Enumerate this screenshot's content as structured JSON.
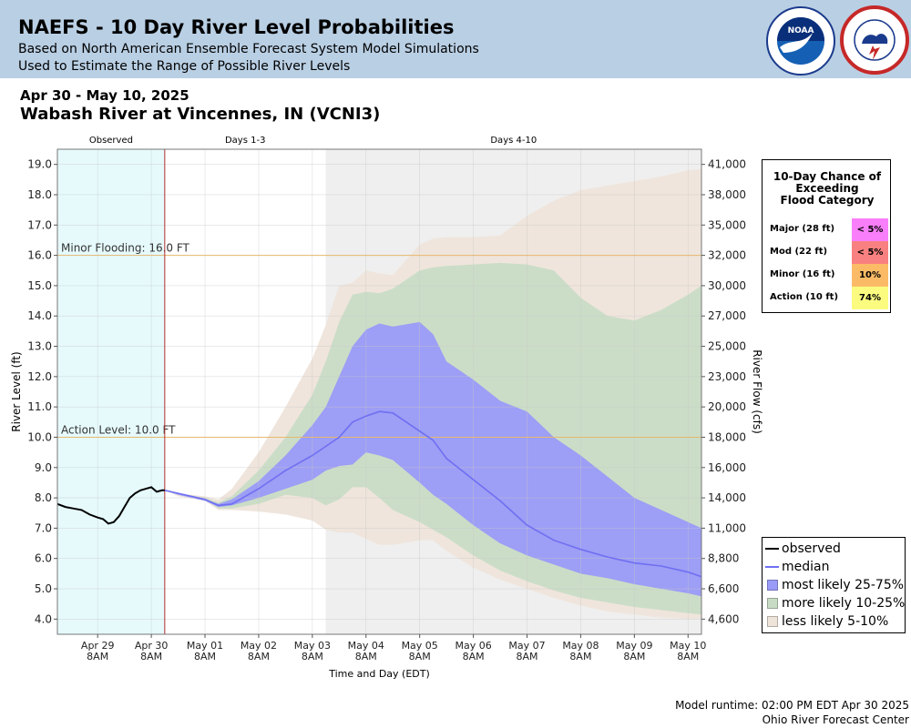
{
  "header": {
    "title": "NAEFS - 10 Day River Level Probabilities",
    "subtitle_1": "Based on North American Ensemble Forecast System Model Simulations",
    "subtitle_2": "Used to Estimate the Range of Possible River Levels"
  },
  "page": {
    "date_range": "Apr 30 - May 10, 2025",
    "station": "Wabash River at Vincennes, IN (VCNI3)"
  },
  "colors": {
    "header_bg": "#b9cfe4",
    "observed_region": "#e6fafc",
    "forecast_days_4_10": "#efefef",
    "less_likely": "#eee4da",
    "more_likely": "#c8dcc5",
    "most_likely": "#9a9af8",
    "median": "#6f6ff2",
    "observed_line": "#000000",
    "flood_line": "#e6b86e",
    "now_line": "#b03030",
    "major": "#f97ef9",
    "moderate": "#f98080",
    "minor": "#fbbb66",
    "action": "#fbfb80"
  },
  "probability_box": {
    "title_lines": [
      "10-Day Chance of",
      "Exceeding",
      "Flood Category"
    ],
    "rows": [
      {
        "label": "Major (28 ft)",
        "value": "< 5%",
        "color": "#f97ef9"
      },
      {
        "label": "Mod (22 ft)",
        "value": "< 5%",
        "color": "#f98080"
      },
      {
        "label": "Minor (16 ft)",
        "value": "10%",
        "color": "#fbbb66"
      },
      {
        "label": "Action (10 ft)",
        "value": "74%",
        "color": "#fbfb80"
      }
    ]
  },
  "legend": {
    "items": [
      {
        "label": "observed",
        "kind": "line",
        "color": "#000000"
      },
      {
        "label": "median",
        "kind": "line",
        "color": "#6f6ff2"
      },
      {
        "label": "most likely 25-75%",
        "kind": "box",
        "color": "#9a9af8"
      },
      {
        "label": "more likely 10-25%",
        "kind": "box",
        "color": "#c8dcc5"
      },
      {
        "label": "less likely 5-10%",
        "kind": "box",
        "color": "#eee4da"
      }
    ]
  },
  "footer": {
    "runtime": "Model runtime: 02:00 PM EDT Apr 30 2025",
    "center": "Ohio River Forecast Center"
  },
  "chart_data": {
    "type": "area",
    "xlabel": "Time and Day (EDT)",
    "ylabel": "River Level (ft)",
    "ylabel_right": "River Flow (cfs)",
    "ylim": [
      3.5,
      19.5
    ],
    "xlim": [
      -1.75,
      10.25
    ],
    "x_unit": "days from Apr 30 2025 00:00 EDT",
    "y_ticks": [
      4.0,
      5.0,
      6.0,
      7.0,
      8.0,
      9.0,
      10.0,
      11.0,
      12.0,
      13.0,
      14.0,
      15.0,
      16.0,
      17.0,
      18.0,
      19.0
    ],
    "right_ticks": [
      {
        "stage": 4.0,
        "label": "4,600"
      },
      {
        "stage": 5.0,
        "label": "6,600"
      },
      {
        "stage": 6.0,
        "label": "8,800"
      },
      {
        "stage": 7.0,
        "label": "11,000"
      },
      {
        "stage": 8.0,
        "label": "14,000"
      },
      {
        "stage": 9.0,
        "label": "16,000"
      },
      {
        "stage": 10.0,
        "label": "18,000"
      },
      {
        "stage": 11.0,
        "label": "20,000"
      },
      {
        "stage": 12.0,
        "label": "23,000"
      },
      {
        "stage": 13.0,
        "label": "25,000"
      },
      {
        "stage": 14.0,
        "label": "27,000"
      },
      {
        "stage": 15.0,
        "label": "30,000"
      },
      {
        "stage": 16.0,
        "label": "32,000"
      },
      {
        "stage": 17.0,
        "label": "35,000"
      },
      {
        "stage": 18.0,
        "label": "38,000"
      },
      {
        "stage": 19.0,
        "label": "41,000"
      }
    ],
    "x_ticks": [
      {
        "x": -1,
        "day": "Apr 29",
        "time": "8AM"
      },
      {
        "x": 0,
        "day": "Apr 30",
        "time": "8AM"
      },
      {
        "x": 1,
        "day": "May 01",
        "time": "8AM"
      },
      {
        "x": 2,
        "day": "May 02",
        "time": "8AM"
      },
      {
        "x": 3,
        "day": "May 03",
        "time": "8AM"
      },
      {
        "x": 4,
        "day": "May 04",
        "time": "8AM"
      },
      {
        "x": 5,
        "day": "May 05",
        "time": "8AM"
      },
      {
        "x": 6,
        "day": "May 06",
        "time": "8AM"
      },
      {
        "x": 7,
        "day": "May 07",
        "time": "8AM"
      },
      {
        "x": 8,
        "day": "May 08",
        "time": "8AM"
      },
      {
        "x": 9,
        "day": "May 09",
        "time": "8AM"
      },
      {
        "x": 10,
        "day": "May 10",
        "time": "8AM"
      }
    ],
    "periods": [
      {
        "label": "Observed",
        "start": -1.75,
        "end": 0.25
      },
      {
        "label": "Days 1-3",
        "start": 0.25,
        "end": 3.25
      },
      {
        "label": "Days 4-10",
        "start": 3.25,
        "end": 10.25
      }
    ],
    "now_x": 0.25,
    "flood_lines": [
      {
        "stage": 16.0,
        "label": "Minor Flooding: 16.0 FT"
      },
      {
        "stage": 10.0,
        "label": "Action Level: 10.0 FT"
      }
    ],
    "observed": {
      "x": [
        -1.75,
        -1.6,
        -1.45,
        -1.3,
        -1.15,
        -1.0,
        -0.9,
        -0.8,
        -0.7,
        -0.6,
        -0.5,
        -0.4,
        -0.3,
        -0.2,
        -0.1,
        0.0,
        0.1,
        0.2,
        0.25
      ],
      "y": [
        7.8,
        7.7,
        7.65,
        7.6,
        7.45,
        7.35,
        7.3,
        7.15,
        7.2,
        7.4,
        7.7,
        8.0,
        8.15,
        8.25,
        8.3,
        8.35,
        8.2,
        8.25,
        8.25
      ]
    },
    "forecast_x": [
      0.25,
      0.5,
      1.0,
      1.25,
      1.5,
      2.0,
      2.5,
      3.0,
      3.25,
      3.5,
      3.75,
      4.0,
      4.25,
      4.5,
      5.0,
      5.25,
      5.5,
      6.0,
      6.5,
      7.0,
      7.5,
      8.0,
      8.5,
      9.0,
      9.5,
      10.0,
      10.25
    ],
    "median": [
      8.25,
      8.15,
      7.95,
      7.75,
      7.8,
      8.3,
      8.9,
      9.4,
      9.7,
      10.0,
      10.5,
      10.7,
      10.85,
      10.8,
      10.2,
      9.9,
      9.3,
      8.6,
      7.9,
      7.1,
      6.6,
      6.3,
      6.05,
      5.85,
      5.75,
      5.55,
      5.4
    ],
    "bands": [
      {
        "name": "less likely 5-10%",
        "upper": [
          8.25,
          8.15,
          8.05,
          7.95,
          8.3,
          9.5,
          11.0,
          12.6,
          13.7,
          15.0,
          15.1,
          15.5,
          15.4,
          15.35,
          16.35,
          16.55,
          16.6,
          16.6,
          16.65,
          17.3,
          17.8,
          18.15,
          18.3,
          18.45,
          18.6,
          18.8,
          18.85
        ],
        "lower": [
          8.25,
          8.05,
          7.9,
          7.6,
          7.6,
          7.55,
          7.45,
          7.25,
          6.95,
          6.85,
          6.85,
          6.65,
          6.45,
          6.45,
          6.6,
          6.6,
          6.25,
          5.7,
          5.3,
          5.0,
          4.7,
          4.45,
          4.25,
          4.15,
          4.05,
          4.0,
          4.0
        ]
      },
      {
        "name": "more likely 10-25%",
        "upper": [
          8.25,
          8.15,
          8.0,
          7.85,
          8.05,
          8.9,
          10.0,
          11.4,
          12.5,
          13.8,
          14.7,
          14.8,
          14.75,
          14.9,
          15.5,
          15.6,
          15.65,
          15.7,
          15.75,
          15.7,
          15.5,
          14.6,
          14.0,
          13.85,
          14.2,
          14.7,
          15.0
        ],
        "lower": [
          8.25,
          8.1,
          7.95,
          7.65,
          7.65,
          7.8,
          8.1,
          8.0,
          7.75,
          7.95,
          8.35,
          8.35,
          8.0,
          7.6,
          7.2,
          6.95,
          6.7,
          6.1,
          5.6,
          5.25,
          4.95,
          4.7,
          4.55,
          4.4,
          4.3,
          4.2,
          4.15
        ]
      },
      {
        "name": "most likely 25-75%",
        "upper": [
          8.25,
          8.15,
          7.95,
          7.8,
          7.95,
          8.55,
          9.4,
          10.4,
          11.0,
          12.0,
          13.0,
          13.55,
          13.75,
          13.65,
          13.8,
          13.4,
          12.5,
          11.9,
          11.2,
          10.85,
          10.0,
          9.4,
          8.7,
          8.0,
          7.6,
          7.2,
          7.0
        ],
        "lower": [
          8.25,
          8.1,
          7.9,
          7.7,
          7.75,
          8.0,
          8.3,
          8.6,
          8.9,
          9.05,
          9.1,
          9.5,
          9.4,
          9.25,
          8.5,
          8.1,
          7.8,
          7.1,
          6.5,
          6.1,
          5.8,
          5.5,
          5.35,
          5.15,
          5.0,
          4.85,
          4.75
        ]
      }
    ]
  }
}
